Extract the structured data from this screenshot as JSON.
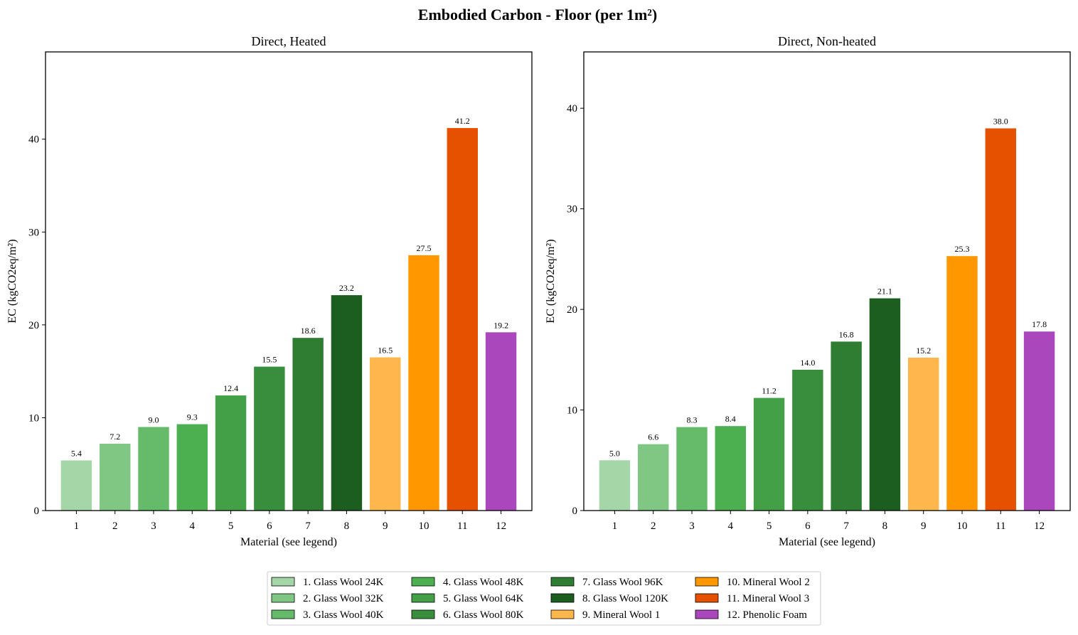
{
  "figure_title": "Embodied Carbon - Floor (per 1m²)",
  "legend_entries": [
    {
      "label": "1. Glass Wool 24K",
      "color": "#a5d6a7"
    },
    {
      "label": "2. Glass Wool 32K",
      "color": "#81c784"
    },
    {
      "label": "3. Glass Wool 40K",
      "color": "#66bb6a"
    },
    {
      "label": "4. Glass Wool 48K",
      "color": "#4caf50"
    },
    {
      "label": "5. Glass Wool 64K",
      "color": "#43a047"
    },
    {
      "label": "6. Glass Wool 80K",
      "color": "#388e3c"
    },
    {
      "label": "7. Glass Wool 96K",
      "color": "#2e7d32"
    },
    {
      "label": "8. Glass Wool 120K",
      "color": "#1b5e20"
    },
    {
      "label": "9. Mineral Wool 1",
      "color": "#ffb74d"
    },
    {
      "label": "10. Mineral Wool 2",
      "color": "#ff9800"
    },
    {
      "label": "11. Mineral Wool 3",
      "color": "#e65100"
    },
    {
      "label": "12. Phenolic Foam",
      "color": "#ab47bc"
    }
  ],
  "chart_data": [
    {
      "type": "bar",
      "title": "Direct, Heated",
      "xlabel": "Material (see legend)",
      "ylabel": "EC (kgCO2eq/m²)",
      "categories": [
        "1",
        "2",
        "3",
        "4",
        "5",
        "6",
        "7",
        "8",
        "9",
        "10",
        "11",
        "12"
      ],
      "values": [
        5.4,
        7.2,
        9.0,
        9.3,
        12.4,
        15.5,
        18.6,
        23.2,
        16.5,
        27.5,
        41.2,
        19.2
      ],
      "value_labels": [
        "5.4",
        "7.2",
        "9.0",
        "9.3",
        "12.4",
        "15.5",
        "18.6",
        "23.2",
        "16.5",
        "27.5",
        "41.2",
        "19.2"
      ],
      "ylim": [
        0,
        49.4
      ],
      "yticks": [
        0,
        10,
        20,
        30,
        40
      ],
      "ytick_labels": [
        "0",
        "10",
        "20",
        "30",
        "40"
      ],
      "grid": false
    },
    {
      "type": "bar",
      "title": "Direct, Non-heated",
      "xlabel": "Material (see legend)",
      "ylabel": "EC (kgCO2eq/m²)",
      "categories": [
        "1",
        "2",
        "3",
        "4",
        "5",
        "6",
        "7",
        "8",
        "9",
        "10",
        "11",
        "12"
      ],
      "values": [
        5.0,
        6.6,
        8.3,
        8.4,
        11.2,
        14.0,
        16.8,
        21.1,
        15.2,
        25.3,
        38.0,
        17.8
      ],
      "value_labels": [
        "5.0",
        "6.6",
        "8.3",
        "8.4",
        "11.2",
        "14.0",
        "16.8",
        "21.1",
        "15.2",
        "25.3",
        "38.0",
        "17.8"
      ],
      "ylim": [
        0,
        45.6
      ],
      "yticks": [
        0,
        10,
        20,
        30,
        40
      ],
      "ytick_labels": [
        "0",
        "10",
        "20",
        "30",
        "40"
      ],
      "grid": false
    }
  ]
}
